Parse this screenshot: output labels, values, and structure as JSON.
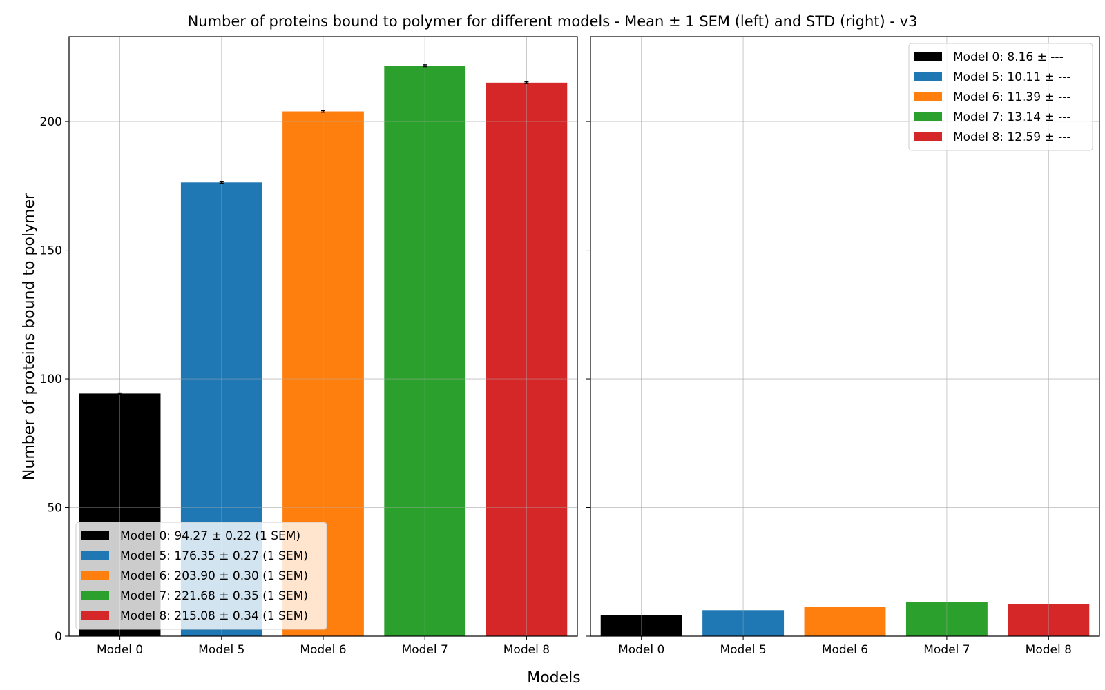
{
  "chart_data": {
    "type": "bar",
    "title": "Number of proteins bound to polymer for different models - Mean ± 1 SEM (left) and STD (right) - v3",
    "xlabel": "Models",
    "ylabel": "Number of proteins bound to polymer",
    "ylim": [
      0,
      233
    ],
    "yticks": [
      0,
      50,
      100,
      150,
      200
    ],
    "grid": true,
    "categories": [
      "Model 0",
      "Model 5",
      "Model 6",
      "Model 7",
      "Model 8"
    ],
    "colors": [
      "#000000",
      "#1f77b4",
      "#ff7f0e",
      "#2ca02c",
      "#d62728"
    ],
    "panels": [
      {
        "name": "Mean ± 1 SEM",
        "values": [
          94.27,
          176.35,
          203.9,
          221.68,
          215.08
        ],
        "errors": [
          0.22,
          0.27,
          0.3,
          0.35,
          0.34
        ],
        "legend_position": "lower-left",
        "legend": [
          "Model 0: 94.27 ± 0.22 (1 SEM)",
          "Model 5: 176.35 ± 0.27 (1 SEM)",
          "Model 6: 203.90 ± 0.30 (1 SEM)",
          "Model 7: 221.68 ± 0.35 (1 SEM)",
          "Model 8: 215.08 ± 0.34 (1 SEM)"
        ]
      },
      {
        "name": "STD",
        "values": [
          8.16,
          10.11,
          11.39,
          13.14,
          12.59
        ],
        "legend_position": "upper-right",
        "legend": [
          "Model 0: 8.16 ± ---",
          "Model 5: 10.11 ± ---",
          "Model 6: 11.39 ± ---",
          "Model 7: 13.14 ± ---",
          "Model 8: 12.59 ± ---"
        ]
      }
    ]
  }
}
